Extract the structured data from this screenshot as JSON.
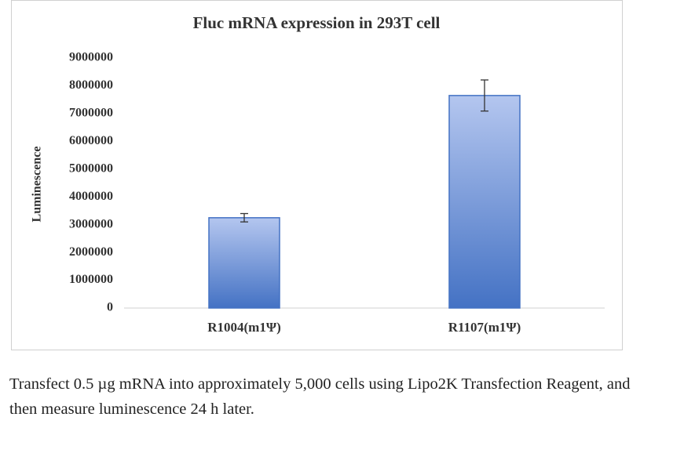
{
  "chart_data": {
    "type": "bar",
    "title": "Fluc mRNA expression in 293T cell",
    "y_label": "Luminescence",
    "categories": [
      "R1004(m1Ψ)",
      "R1107(m1Ψ)"
    ],
    "values": [
      3250000,
      7650000
    ],
    "errors": [
      150000,
      560000
    ],
    "color": "#4472c4",
    "ylim": [
      0,
      9000000
    ],
    "yticks": [
      0,
      1000000,
      2000000,
      3000000,
      4000000,
      5000000,
      6000000,
      7000000,
      8000000,
      9000000
    ],
    "grid": false
  },
  "caption": "Transfect 0.5 µg mRNA into approximately 5,000 cells using Lipo2K Transfection Reagent, and then measure luminescence 24 h later."
}
